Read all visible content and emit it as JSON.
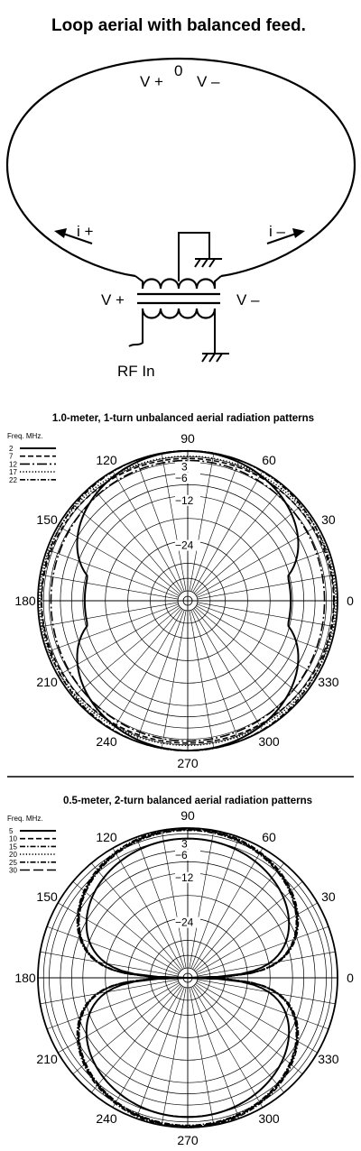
{
  "loop_diagram": {
    "title": "Loop aerial with balanced feed.",
    "labels": {
      "v_plus_top": "V +",
      "zero": "0",
      "v_minus_top": "V –",
      "i_plus": "i +",
      "i_minus": "i –",
      "v_plus": "V +",
      "v_minus": "V –",
      "rf_in": "RF In"
    }
  },
  "charts": [
    {
      "title": "1.0-meter, 1-turn unbalanced aerial radiation patterns",
      "legend_title": "Freq. MHz.",
      "legend": [
        "2",
        "7",
        "12",
        "17",
        "22"
      ]
    },
    {
      "title": "0.5-meter, 2-turn balanced aerial radiation patterns",
      "legend_title": "Freq. MHz.",
      "legend": [
        "5",
        "10",
        "15",
        "20",
        "25",
        "30"
      ]
    }
  ],
  "polar_angle_labels": [
    "0",
    "30",
    "60",
    "90",
    "120",
    "150",
    "180",
    "210",
    "240",
    "270",
    "300",
    "330"
  ],
  "polar_db_labels": [
    "3",
    "6",
    "12",
    "24"
  ],
  "chart_data": [
    {
      "type": "polar-line",
      "title": "1.0-meter, 1-turn unbalanced aerial radiation patterns",
      "angle_unit": "degrees",
      "r_unit": "dB",
      "rlim": [
        -40,
        0
      ],
      "r_ticks": [
        -3,
        -6,
        -12,
        -24
      ],
      "theta_ticks": [
        0,
        30,
        60,
        90,
        120,
        150,
        180,
        210,
        240,
        270,
        300,
        330
      ],
      "legend_title": "Freq. MHz.",
      "series": [
        {
          "name": "2",
          "style": "solid",
          "kind": "dipole",
          "floor": -12.5
        },
        {
          "name": "7",
          "style": "dashed",
          "kind": "omni",
          "r_db": -1.5
        },
        {
          "name": "12",
          "style": "long-dash-dot",
          "kind": "omni",
          "r_db": -3.0
        },
        {
          "name": "17",
          "style": "dotted",
          "kind": "omni",
          "r_db": -0.9
        },
        {
          "name": "22",
          "style": "dash-dot",
          "kind": "omni",
          "r_db": -0.4
        }
      ]
    },
    {
      "type": "polar-line",
      "title": "0.5-meter, 2-turn balanced aerial radiation patterns",
      "angle_unit": "degrees",
      "r_unit": "dB",
      "rlim": [
        -40,
        0
      ],
      "r_ticks": [
        -3,
        -6,
        -12,
        -24
      ],
      "theta_ticks": [
        0,
        30,
        60,
        90,
        120,
        150,
        180,
        210,
        240,
        270,
        300,
        330
      ],
      "legend_title": "Freq. MHz.",
      "series": [
        {
          "name": "5",
          "style": "solid",
          "kind": "figure8",
          "gain_db": -2.8
        },
        {
          "name": "10",
          "style": "dashed",
          "kind": "figure8",
          "gain_db": -0.3
        },
        {
          "name": "15",
          "style": "dash-dot",
          "kind": "figure8",
          "gain_db": -0.6
        },
        {
          "name": "20",
          "style": "dotted",
          "kind": "figure8",
          "gain_db": -0.2
        },
        {
          "name": "25",
          "style": "dash-dot",
          "kind": "figure8",
          "gain_db": 0.0
        },
        {
          "name": "30",
          "style": "long-dash",
          "kind": "figure8",
          "gain_db": -0.4
        }
      ]
    }
  ],
  "colors": {
    "ink": "#000000",
    "background": "#ffffff"
  }
}
